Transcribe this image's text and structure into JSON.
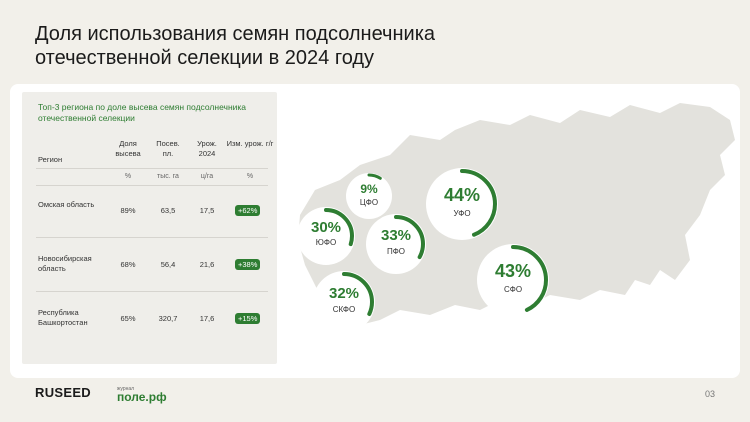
{
  "title": "Доля использования семян подсолнечника отечественной селекции в 2024 году",
  "table": {
    "title": "Топ-3 региона по доле высева семян подсолнечника отечественной селекции",
    "headers": {
      "region": "Регион",
      "share": "Доля высева",
      "area": "Посев. пл.",
      "yield": "Урож. 2024",
      "change": "Изм. урож. г/г"
    },
    "units": {
      "share": "%",
      "area": "тыс. га",
      "yield": "ц/га",
      "change": "%"
    },
    "rows": [
      {
        "region": "Омская область",
        "share": "89%",
        "area": "63,5",
        "yield": "17,5",
        "change": "+62%"
      },
      {
        "region": "Новосибирская область",
        "share": "68%",
        "area": "56,4",
        "yield": "21,6",
        "change": "+38%"
      },
      {
        "region": "Республика Башкортостан",
        "share": "65%",
        "area": "320,7",
        "yield": "17,6",
        "change": "+15%"
      }
    ]
  },
  "districts": [
    {
      "pct": "9%",
      "name": "ЦФО",
      "value": 9
    },
    {
      "pct": "44%",
      "name": "УФО",
      "value": 44
    },
    {
      "pct": "30%",
      "name": "ЮФО",
      "value": 30
    },
    {
      "pct": "33%",
      "name": "ПФО",
      "value": 33
    },
    {
      "pct": "43%",
      "name": "СФО",
      "value": 43
    },
    {
      "pct": "32%",
      "name": "СКФО",
      "value": 32
    }
  ],
  "colors": {
    "accent": "#2e7d32",
    "map": "#e3e2dd"
  },
  "footer": {
    "logo": "RUSEED",
    "magazine_label": "журнал",
    "magazine": "поле.рф",
    "page": "03"
  }
}
